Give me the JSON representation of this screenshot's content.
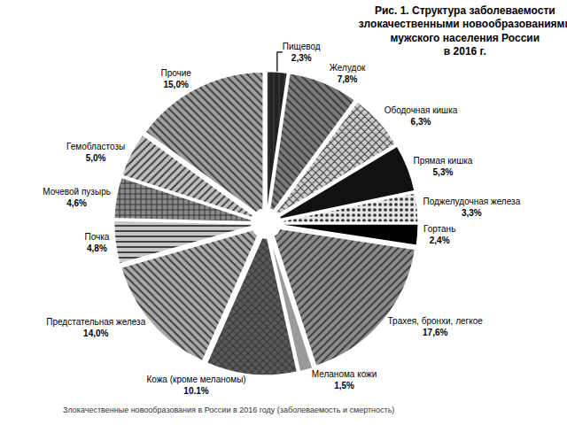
{
  "chart_data": {
    "type": "pie",
    "title": [
      "Рис. 1. Структура заболеваемости",
      "злокачественными новообразованиями",
      "мужского населения России",
      "в 2016 г."
    ],
    "caption": "Злокачественные новообразования в России в 2016 году (заболеваемость и смертность)",
    "categories": [
      "Пищевод",
      "Желудок",
      "Ободочная кишка",
      "Прямая кишка",
      "Поджелудочная железа",
      "Гортань",
      "Трахея, бронхи, легкое",
      "Меланома кожи",
      "Кожа (кроме меланомы)",
      "Предстательная железа",
      "Почка",
      "Мочевой пузырь",
      "Гемобластозы",
      "Прочие"
    ],
    "values": [
      2.3,
      7.8,
      6.3,
      5.3,
      3.3,
      2.4,
      17.6,
      1.5,
      10.1,
      14.0,
      4.8,
      4.6,
      5.0,
      15.0
    ],
    "value_labels": [
      "2,3%",
      "7,8%",
      "6,3%",
      "5,3%",
      "3,3%",
      "2,4%",
      "17,6%",
      "1,5%",
      "10.1%",
      "14,0%",
      "4,8%",
      "4,6%",
      "5,0%",
      "15,0%"
    ],
    "colors": [
      "#222222",
      "#7a7a7a",
      "#d0d0d0",
      "#111111",
      "#e6e6e6",
      "#000000",
      "#8c8c8c",
      "#9a9a9a",
      "#5a5a5a",
      "#a8a8a8",
      "#c8c8c8",
      "#8a8a8a",
      "#bdbdbd",
      "#9e9e9e"
    ],
    "data_labels": true
  }
}
